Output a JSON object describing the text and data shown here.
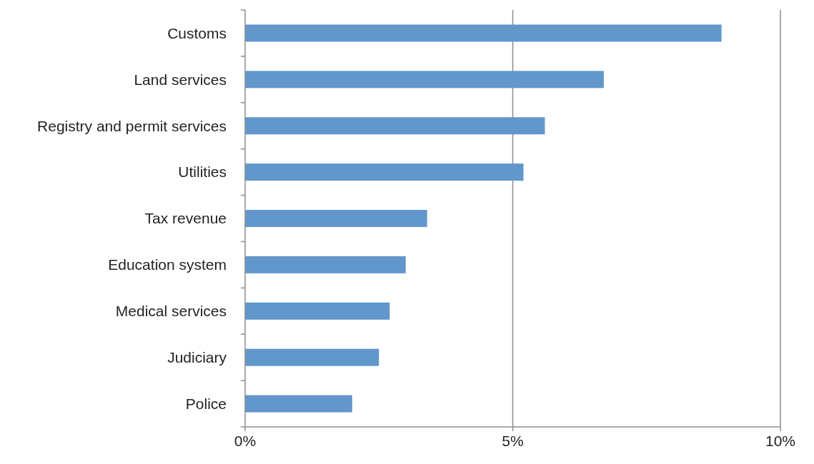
{
  "chart_data": {
    "type": "bar",
    "orientation": "horizontal",
    "categories": [
      "Customs",
      "Land services",
      "Registry and permit services",
      "Utilities",
      "Tax revenue",
      "Education system",
      "Medical services",
      "Judiciary",
      "Police"
    ],
    "values": [
      8.9,
      6.7,
      5.6,
      5.2,
      3.4,
      3.0,
      2.7,
      2.5,
      2.0
    ],
    "color": "#6197cb",
    "xlim": [
      0,
      10
    ],
    "xticks": [
      {
        "value": 0,
        "label": "0%"
      },
      {
        "value": 5,
        "label": "5%"
      },
      {
        "value": 10,
        "label": "10%"
      }
    ],
    "grid": "x"
  }
}
